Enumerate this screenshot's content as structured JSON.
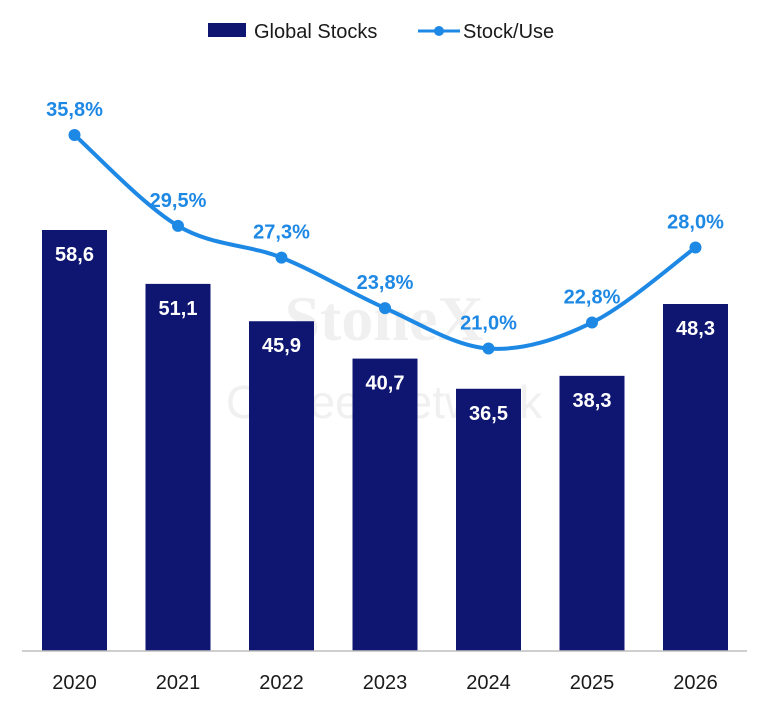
{
  "chart_data": {
    "type": "bar",
    "categories": [
      "2020",
      "2021",
      "2022",
      "2023",
      "2024",
      "2025",
      "2026"
    ],
    "series": [
      {
        "name": "Global Stocks",
        "type": "bar",
        "values": [
          58.6,
          51.1,
          45.9,
          40.7,
          36.5,
          38.3,
          48.3
        ],
        "labels": [
          "58,6",
          "51,1",
          "45,9",
          "40,7",
          "36,5",
          "38,3",
          "48,3"
        ],
        "color": "#0f1672"
      },
      {
        "name": "Stock/Use",
        "type": "line",
        "values": [
          35.8,
          29.5,
          27.3,
          23.8,
          21.0,
          22.8,
          28.0
        ],
        "labels": [
          "35,8%",
          "29,5%",
          "27,3%",
          "23,8%",
          "21,0%",
          "22,8%",
          "28,0%"
        ],
        "color": "#1e88e5"
      }
    ],
    "ylim_bars": [
      0,
      72
    ],
    "ylim_line": [
      0,
      55
    ],
    "legend_position": "top-center",
    "grid": false
  },
  "watermark": {
    "line1": "StoneX",
    "line2": "Coffee Network"
  },
  "colors": {
    "axis": "#bfbfbf",
    "text": "#1a1a1a"
  }
}
